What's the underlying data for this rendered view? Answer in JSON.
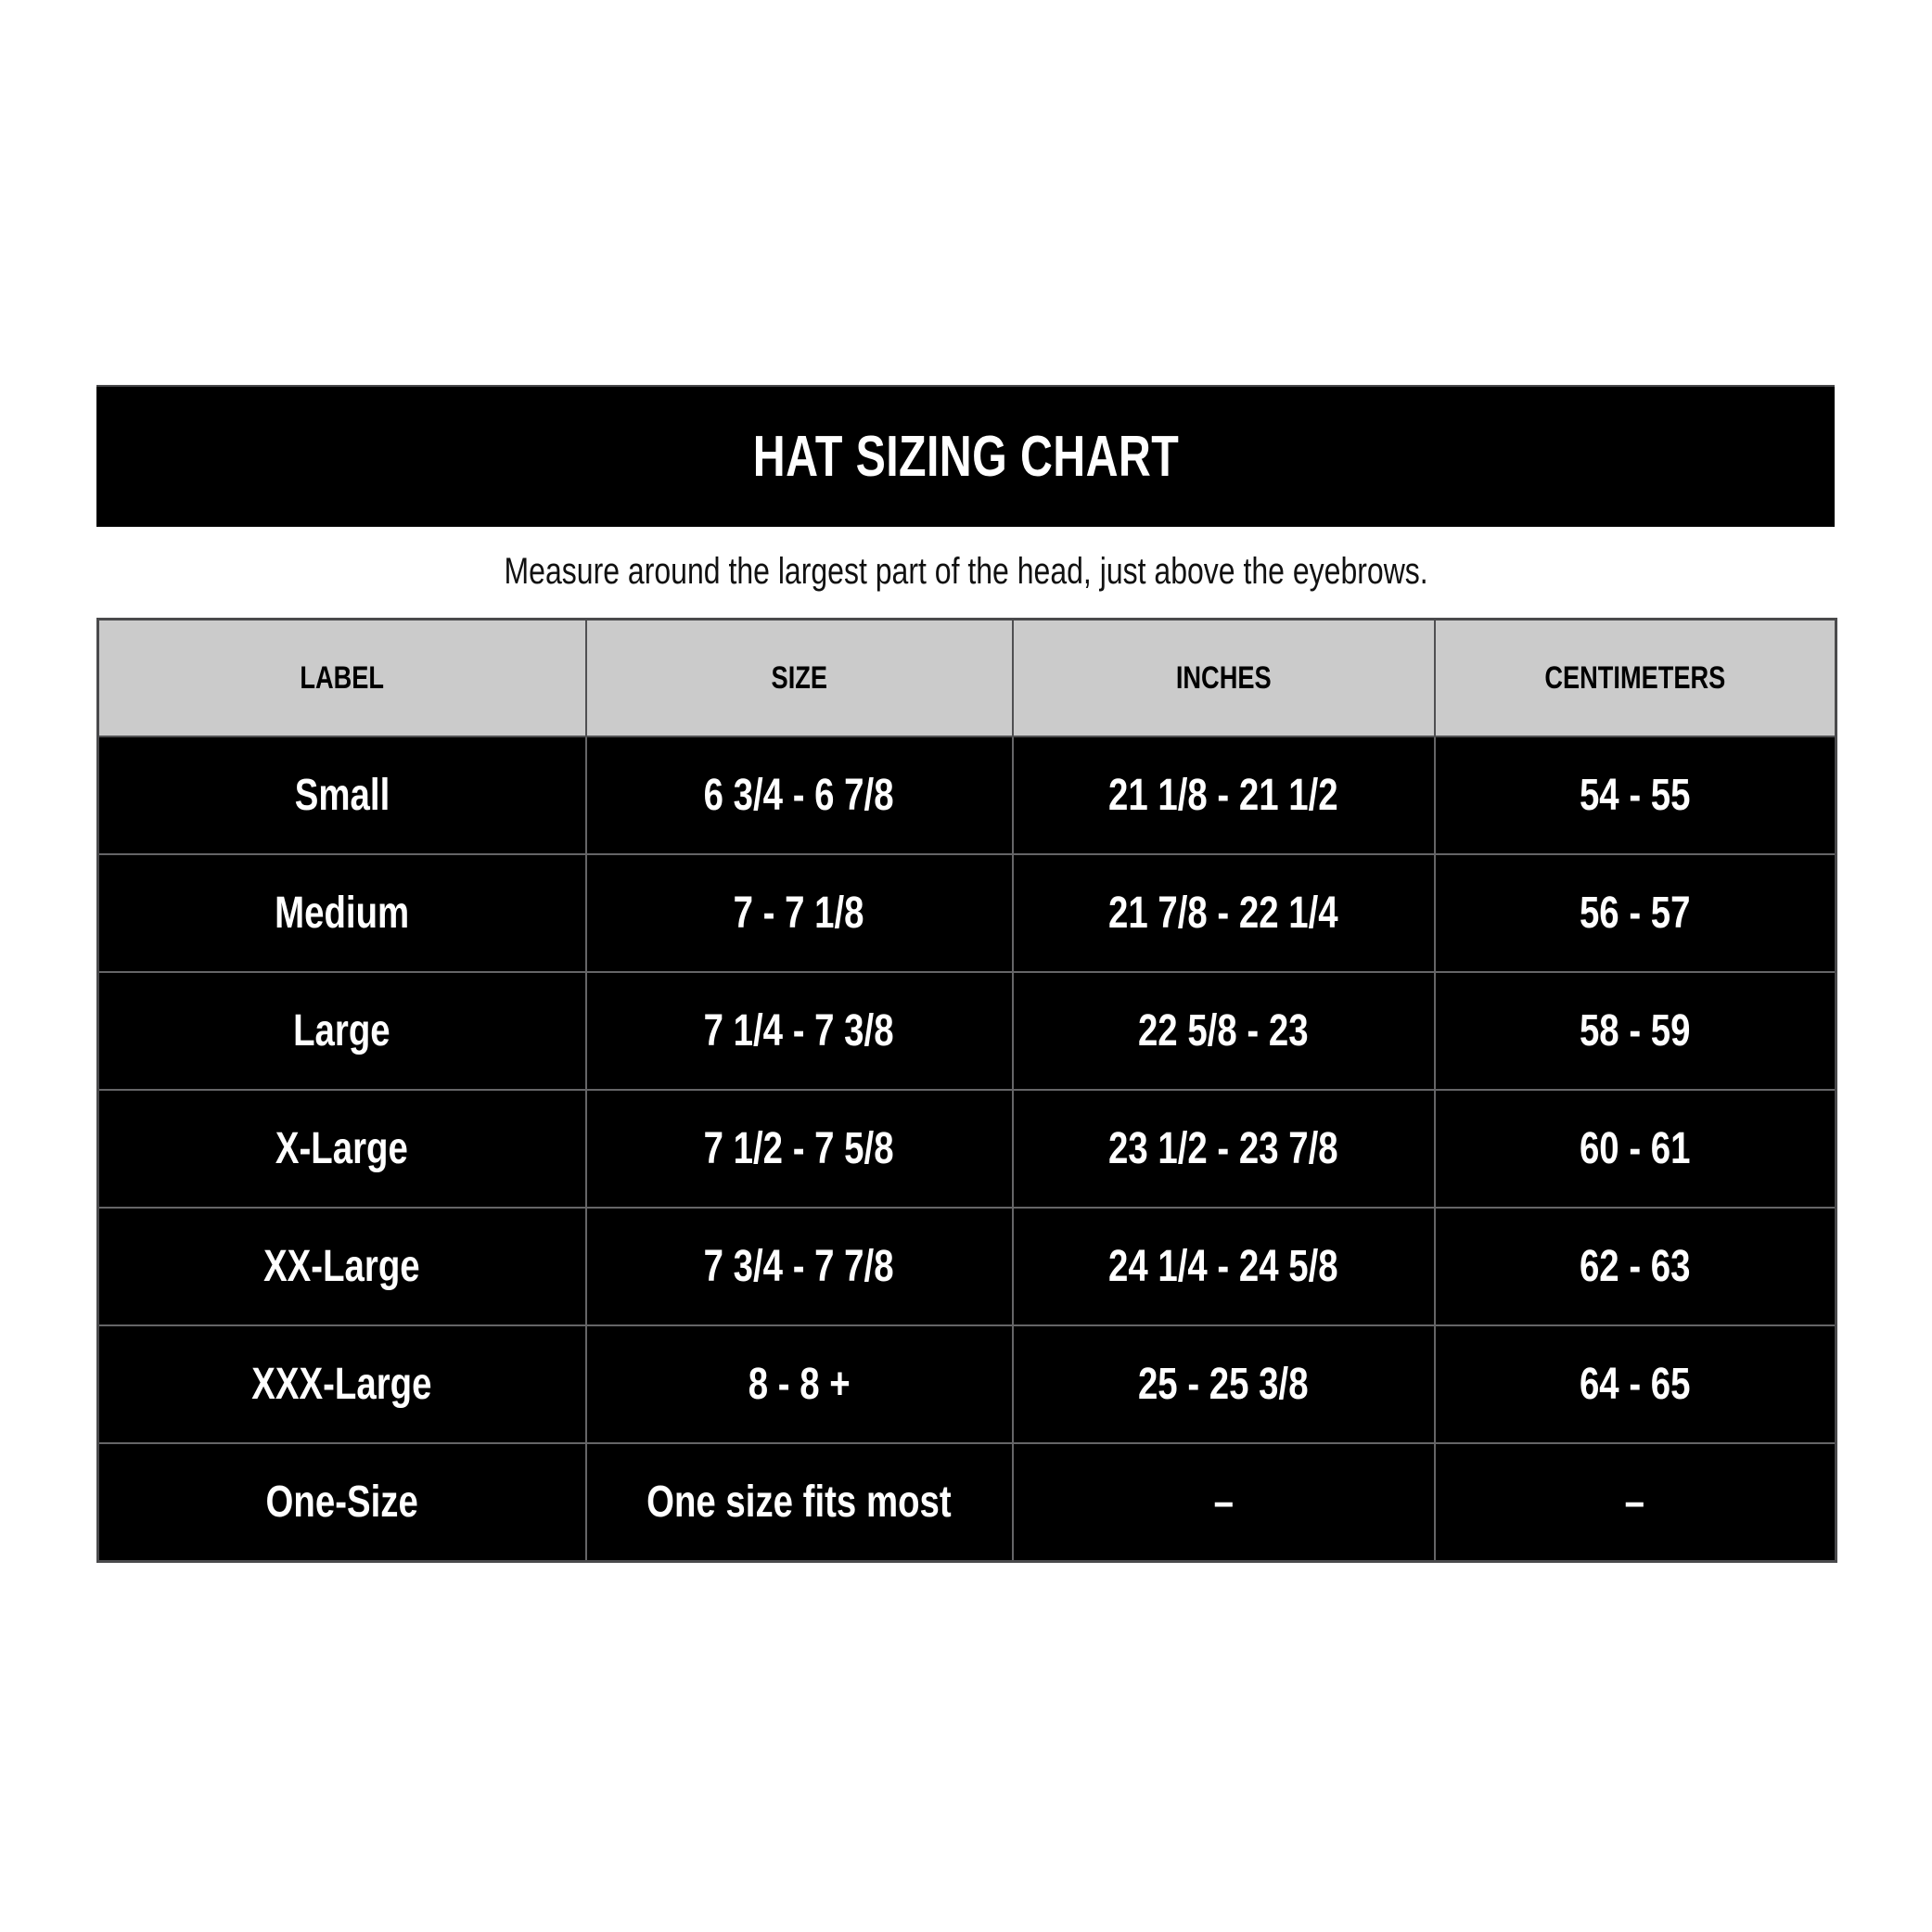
{
  "chart_data": {
    "type": "table",
    "title": "HAT SIZING CHART",
    "subtitle": "Measure around the largest part of the head, just above the eyebrows.",
    "columns": [
      "LABEL",
      "SIZE",
      "INCHES",
      "CENTIMETERS"
    ],
    "rows": [
      [
        "Small",
        "6 3/4 - 6 7/8",
        "21 1/8 - 21 1/2",
        "54 - 55"
      ],
      [
        "Medium",
        "7 - 7 1/8",
        "21 7/8 - 22 1/4",
        "56 - 57"
      ],
      [
        "Large",
        "7 1/4 - 7 3/8",
        "22 5/8 - 23",
        "58 - 59"
      ],
      [
        "X-Large",
        "7 1/2 - 7 5/8",
        "23 1/2 - 23 7/8",
        "60 - 61"
      ],
      [
        "XX-Large",
        "7 3/4 - 7 7/8",
        "24 1/4 - 24 5/8",
        "62 - 63"
      ],
      [
        "XXX-Large",
        "8 - 8 +",
        "25 - 25 3/8",
        "64 - 65"
      ],
      [
        "One-Size",
        "One size fits most",
        "–",
        "–"
      ]
    ]
  },
  "colors": {
    "banner_bg": "#000000",
    "banner_text": "#ffffff",
    "table_header_bg": "#cbcbcb",
    "table_header_text": "#000000",
    "row_bg": "#000000",
    "row_text": "#ffffff",
    "grid_line": "#656567",
    "page_bg": "#ffffff"
  }
}
